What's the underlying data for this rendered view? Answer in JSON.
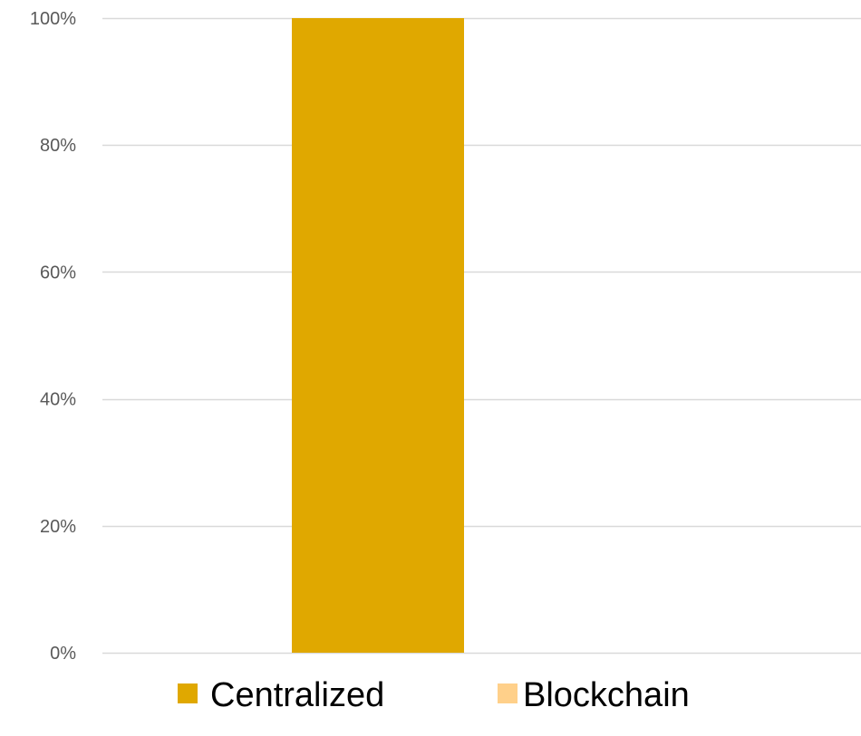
{
  "chart_data": {
    "type": "bar",
    "stacked": true,
    "categories": [
      ""
    ],
    "series": [
      {
        "name": "Centralized",
        "values": [
          100
        ],
        "color": "#E0A800"
      },
      {
        "name": "Blockchain",
        "values": [
          0
        ],
        "color": "#FFD08A"
      }
    ],
    "title": "",
    "xlabel": "",
    "ylabel": "",
    "ylim": [
      0,
      100
    ],
    "yticks": [
      0,
      20,
      40,
      60,
      80,
      100
    ],
    "ytick_labels": [
      "0%",
      "20%",
      "40%",
      "60%",
      "80%",
      "100%"
    ],
    "grid": true,
    "gridline_color": "#D9D9D9",
    "legend_position": "bottom"
  }
}
